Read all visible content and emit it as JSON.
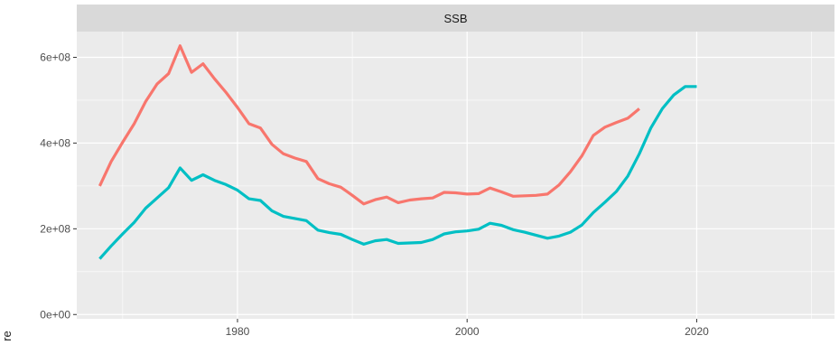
{
  "chart_data": {
    "type": "line",
    "facet_title": "SSB",
    "ylabel": "re",
    "xlim": [
      1966,
      2032
    ],
    "ylim": [
      -10000000,
      660000000
    ],
    "x_ticks": [
      1980,
      2000,
      2020
    ],
    "x_tick_labels": [
      "1980",
      "2000",
      "2020"
    ],
    "x_minor_ticks": [
      1970,
      1990,
      2010,
      2030
    ],
    "y_ticks": [
      0,
      200000000,
      400000000,
      600000000
    ],
    "y_tick_labels": [
      "0e+00",
      "2e+08",
      "4e+08",
      "6e+08"
    ],
    "y_minor_ticks": [
      100000000,
      300000000,
      500000000
    ],
    "grid": true,
    "panel_background": "#ebebeb",
    "strip_background": "#d9d9d9",
    "series": [
      {
        "color": "#f8766d",
        "x": [
          1968,
          1969,
          1970,
          1971,
          1972,
          1973,
          1974,
          1975,
          1976,
          1977,
          1978,
          1979,
          1980,
          1981,
          1982,
          1983,
          1984,
          1985,
          1986,
          1987,
          1988,
          1989,
          1990,
          1991,
          1992,
          1993,
          1994,
          1995,
          1996,
          1997,
          1998,
          1999,
          2000,
          2001,
          2002,
          2003,
          2004,
          2005,
          2006,
          2007,
          2008,
          2009,
          2010,
          2011,
          2012,
          2013,
          2014,
          2015
        ],
        "y": [
          300000000,
          357000000,
          402000000,
          445000000,
          497000000,
          538000000,
          562000000,
          627000000,
          565000000,
          585000000,
          550000000,
          518000000,
          483000000,
          445000000,
          435000000,
          397000000,
          375000000,
          365000000,
          357000000,
          317000000,
          305000000,
          297000000,
          278000000,
          258000000,
          268000000,
          274000000,
          261000000,
          267000000,
          270000000,
          272000000,
          285000000,
          284000000,
          281000000,
          282000000,
          295000000,
          286000000,
          276000000,
          277000000,
          278000000,
          281000000,
          302000000,
          333000000,
          370000000,
          418000000,
          437000000,
          448000000,
          458000000,
          480000000
        ]
      },
      {
        "color": "#00bfc4",
        "x": [
          1968,
          1969,
          1970,
          1971,
          1972,
          1973,
          1974,
          1975,
          1976,
          1977,
          1978,
          1979,
          1980,
          1981,
          1982,
          1983,
          1984,
          1985,
          1986,
          1987,
          1988,
          1989,
          1990,
          1991,
          1992,
          1993,
          1994,
          1995,
          1996,
          1997,
          1998,
          1999,
          2000,
          2001,
          2002,
          2003,
          2004,
          2005,
          2006,
          2007,
          2008,
          2009,
          2010,
          2011,
          2012,
          2013,
          2014,
          2015,
          2016,
          2017,
          2018,
          2019,
          2020
        ],
        "y": [
          130000000,
          160000000,
          188000000,
          215000000,
          248000000,
          272000000,
          296000000,
          342000000,
          313000000,
          326000000,
          313000000,
          303000000,
          290000000,
          270000000,
          266000000,
          242000000,
          229000000,
          224000000,
          219000000,
          197000000,
          191000000,
          187000000,
          175000000,
          164000000,
          172000000,
          175000000,
          166000000,
          167000000,
          168000000,
          175000000,
          188000000,
          193000000,
          195000000,
          199000000,
          213000000,
          208000000,
          198000000,
          192000000,
          185000000,
          178000000,
          183000000,
          192000000,
          209000000,
          238000000,
          262000000,
          287000000,
          323000000,
          375000000,
          435000000,
          480000000,
          512000000,
          532000000,
          532000000
        ]
      }
    ]
  }
}
